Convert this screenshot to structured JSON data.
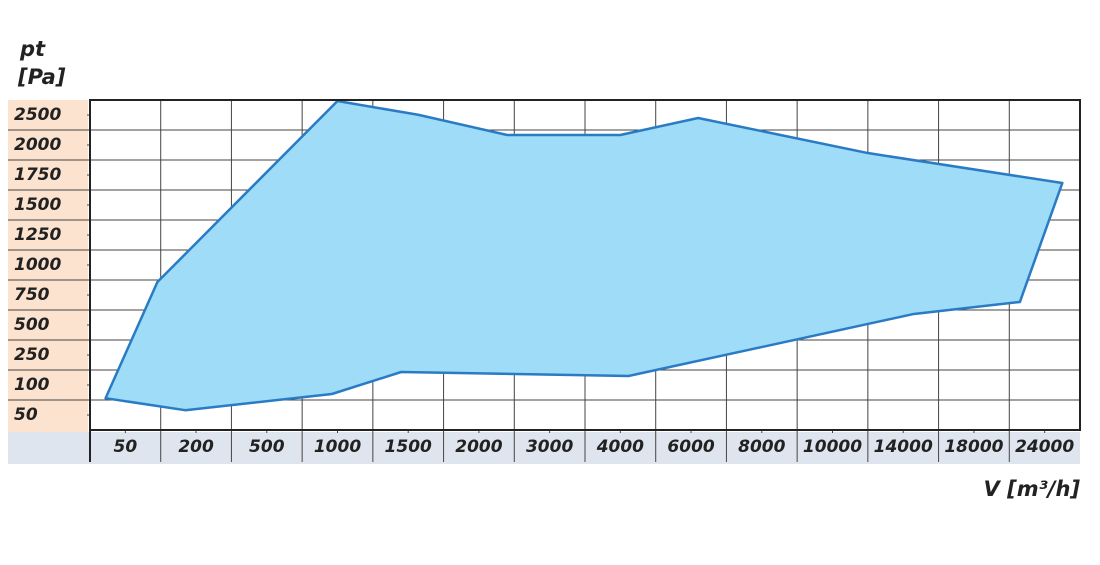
{
  "chart_data": {
    "type": "area",
    "y_label_line1": "pt",
    "y_label_line2": "[Pa]",
    "x_label": "V [m³/h]",
    "xticks": [
      50,
      200,
      500,
      1000,
      1500,
      2000,
      3000,
      4000,
      6000,
      8000,
      10000,
      14000,
      18000,
      24000
    ],
    "yticks": [
      2500,
      2000,
      1750,
      1500,
      1250,
      1000,
      750,
      500,
      250,
      100,
      50
    ],
    "xlim": [
      0,
      30000
    ],
    "ylim": [
      0,
      3000
    ],
    "series": [
      {
        "color": "#2a7bc4",
        "fill": "#9edcf8",
        "x": [
          22,
          118,
          1000,
          1570,
          2400,
          4000,
          6200,
          12000,
          27000,
          21900,
          14600,
          4230,
          1450,
          960,
          177
        ],
        "y": [
          78,
          858,
          2967,
          2508,
          2167,
          2167,
          2450,
          1933,
          1683,
          692,
          592,
          145,
          165,
          85,
          58
        ]
      }
    ],
    "grid": true
  }
}
